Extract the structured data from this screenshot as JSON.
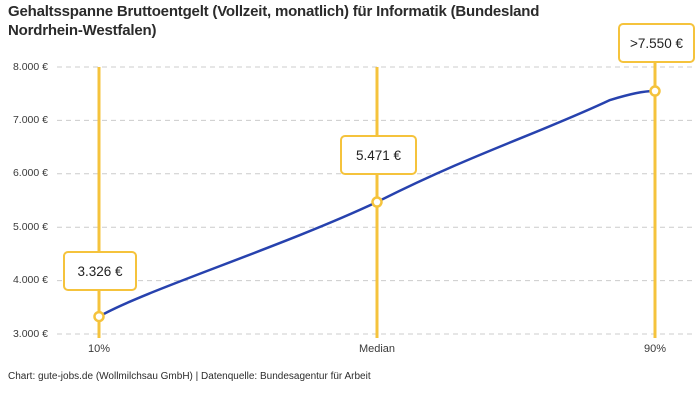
{
  "title": "Gehaltsspanne Bruttoentgelt (Vollzeit, monatlich) für Informatik (Bundesland Nordrhein-Westfalen)",
  "footer": "Chart: gute-jobs.de (Wollmilchsau GmbH) | Datenquelle: Bundesagentur für Arbeit",
  "chart_data": {
    "type": "line",
    "title": "Gehaltsspanne Bruttoentgelt (Vollzeit, monatlich) für Informatik (Bundesland Nordrhein-Westfalen)",
    "xlabel": "",
    "ylabel": "",
    "ylim": [
      3000,
      8000
    ],
    "grid": "horizontal-dashed",
    "legend": "none",
    "y_ticks": [
      {
        "value": 8000,
        "label": "8.000 €"
      },
      {
        "value": 7000,
        "label": "7.000 €"
      },
      {
        "value": 6000,
        "label": "6.000 €"
      },
      {
        "value": 5000,
        "label": "5.000 €"
      },
      {
        "value": 4000,
        "label": "4.000 €"
      },
      {
        "value": 3000,
        "label": "3.000 €"
      }
    ],
    "points": [
      {
        "label": "10%",
        "value": 3326,
        "display": "3.326 €"
      },
      {
        "label": "Median",
        "value": 5471,
        "display": "5.471 €"
      },
      {
        "label": "90%",
        "value": 7550,
        "display": ">7.550 €"
      }
    ],
    "colors": {
      "line": "#2742ae",
      "marker_line": "#f5c33c",
      "grid": "#cccccc",
      "text": "#2b2b2b"
    }
  }
}
